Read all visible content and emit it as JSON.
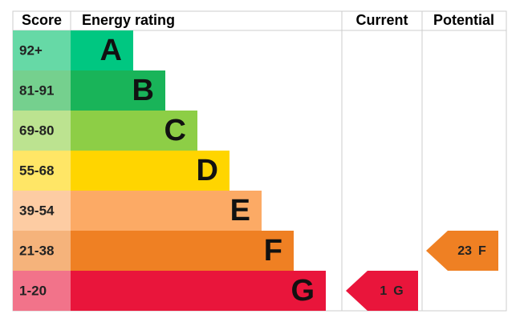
{
  "header": {
    "score": "Score",
    "rating": "Energy rating",
    "current": "Current",
    "potential": "Potential"
  },
  "bands": [
    {
      "score": "92+",
      "letter": "A",
      "color": "#00c781",
      "tint": "#66d9a6"
    },
    {
      "score": "81-91",
      "letter": "B",
      "color": "#19b459",
      "tint": "#75d08e"
    },
    {
      "score": "69-80",
      "letter": "C",
      "color": "#8dce46",
      "tint": "#bce390"
    },
    {
      "score": "55-68",
      "letter": "D",
      "color": "#ffd500",
      "tint": "#ffe666"
    },
    {
      "score": "39-54",
      "letter": "E",
      "color": "#fcaa65",
      "tint": "#fdcca3"
    },
    {
      "score": "21-38",
      "letter": "F",
      "color": "#ef8023",
      "tint": "#f5b37b"
    },
    {
      "score": "1-20",
      "letter": "G",
      "color": "#e9153b",
      "tint": "#f2738a"
    }
  ],
  "current": {
    "score": 1,
    "rating": "G"
  },
  "potential": {
    "score": 23,
    "rating": "F"
  }
}
